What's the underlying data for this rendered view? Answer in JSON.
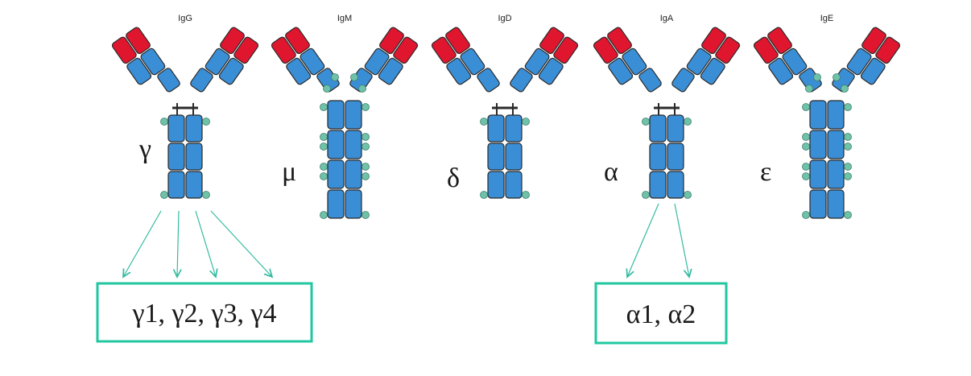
{
  "colors": {
    "variable": "#e0162f",
    "constant": "#3a8ed6",
    "outline": "#2a2a2a",
    "carbohydrate": "#6fc2a8",
    "arrow": "#33bba0",
    "box_border": "#22c7a0"
  },
  "antibodies": [
    {
      "title": "IgG",
      "chain": "γ",
      "heavy_constant_domains": 3,
      "has_hinge": true
    },
    {
      "title": "IgM",
      "chain": "μ",
      "heavy_constant_domains": 4,
      "has_hinge": false
    },
    {
      "title": "IgD",
      "chain": "δ",
      "heavy_constant_domains": 3,
      "has_hinge": true
    },
    {
      "title": "IgA",
      "chain": "α",
      "heavy_constant_domains": 3,
      "has_hinge": true
    },
    {
      "title": "IgE",
      "chain": "ε",
      "heavy_constant_domains": 4,
      "has_hinge": false
    }
  ],
  "subclass_boxes": [
    {
      "parent": "IgG",
      "text": "γ1, γ2, γ3, γ4",
      "arrow_count": 4
    },
    {
      "parent": "IgA",
      "text": "α1, α2",
      "arrow_count": 2
    }
  ]
}
